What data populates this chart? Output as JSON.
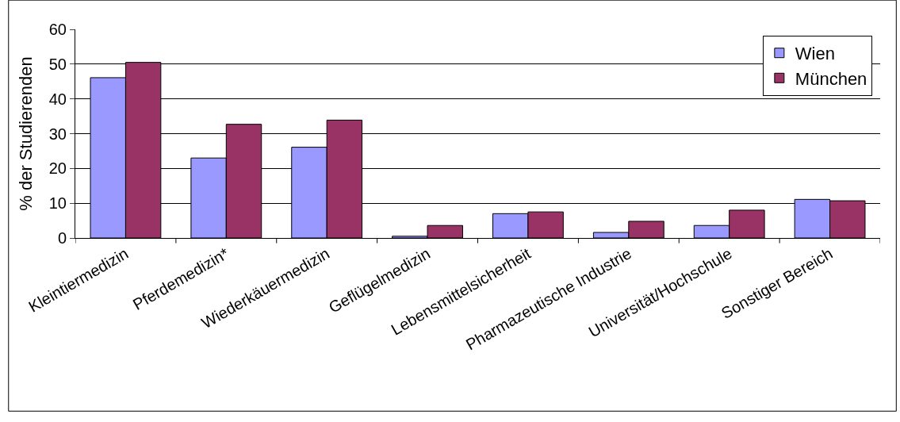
{
  "chart_data": {
    "type": "bar",
    "ylabel": "% der Studierenden",
    "categories": [
      "Kleintiermedizin",
      "Pferdemedizin*",
      "Wiederkäuermedizin",
      "Geflügelmedizin",
      "Lebensmittelsicherheit",
      "Pharmazeutische Industrie",
      "Universität/Hochschule",
      "Sonstiger Bereich"
    ],
    "series": [
      {
        "name": "Wien",
        "color": "#9999ff",
        "values": [
          46.1,
          23,
          26.1,
          0.5,
          7,
          1.6,
          3.6,
          11.1
        ]
      },
      {
        "name": "München",
        "color": "#993366",
        "values": [
          50.5,
          32.7,
          33.9,
          3.6,
          7.5,
          4.8,
          8,
          10.7
        ]
      }
    ],
    "ylim": [
      0,
      60
    ],
    "yticks": [
      0,
      10,
      20,
      30,
      40,
      50,
      60
    ],
    "grid": "y",
    "legend": "top right"
  }
}
